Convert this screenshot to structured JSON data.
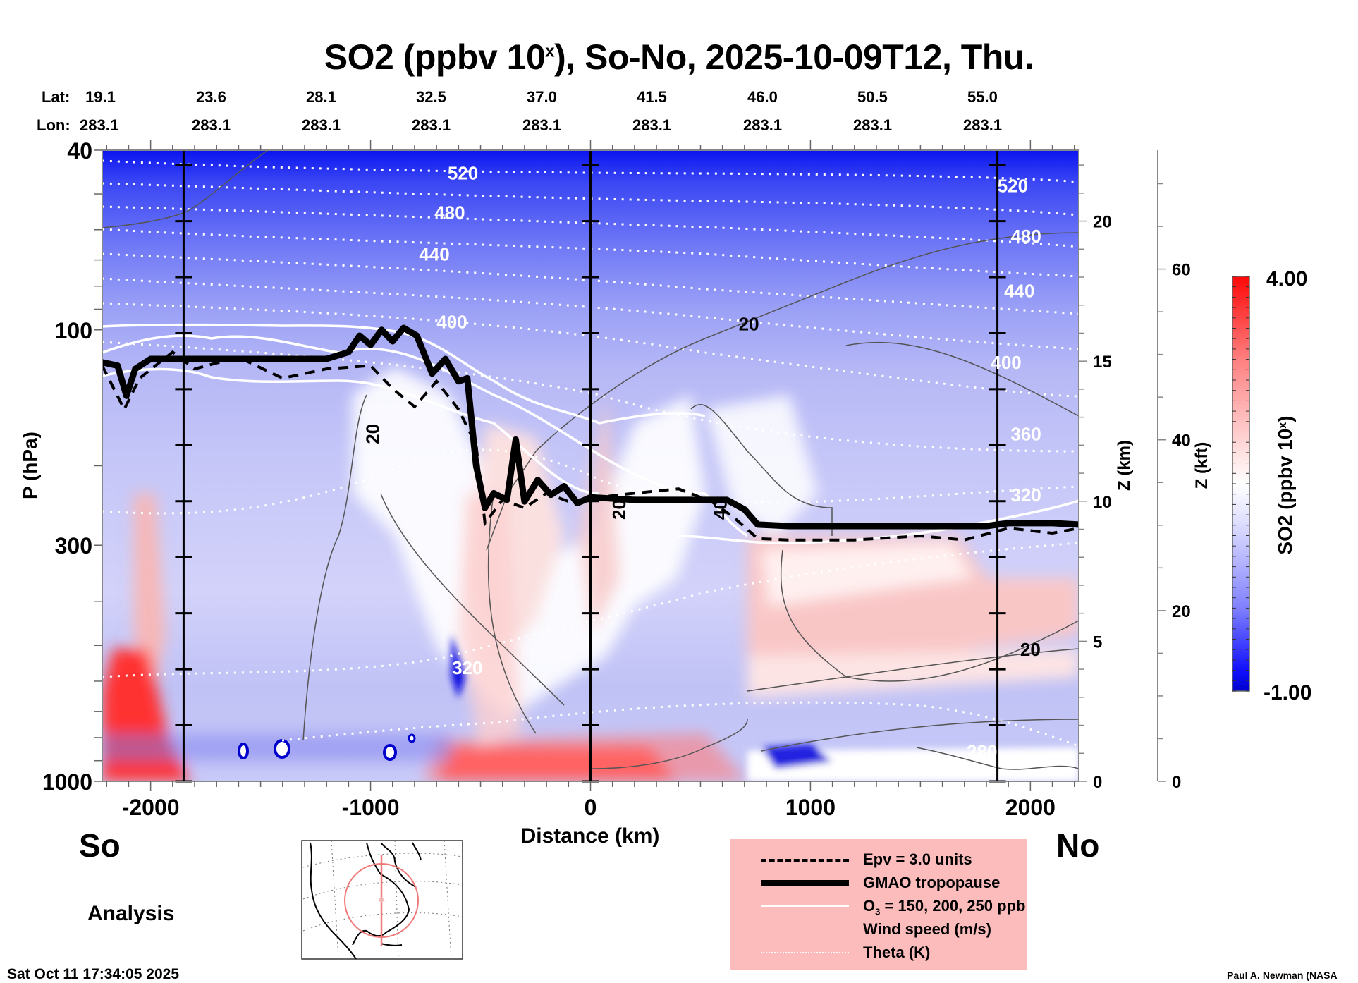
{
  "chart_data": {
    "type": "heatmap",
    "title": "SO2 (ppbv 10",
    "title_sup": "x",
    "title_suffix": "), So-No, 2025-10-09T12, Thu.",
    "xlabel": "Distance (km)",
    "ylabel": "P (hPa)",
    "xlim": [
      -2220,
      2220
    ],
    "ylim_hPa": [
      1000,
      40
    ],
    "x_ticks": [
      -2000,
      -1000,
      0,
      1000,
      2000
    ],
    "x_tick_labels": [
      "-2000",
      "-1000",
      "0",
      "1000",
      "2000"
    ],
    "y_ticks": [
      40,
      100,
      300,
      1000
    ],
    "y_tick_labels": [
      "40",
      "100",
      "300",
      "1000"
    ],
    "y_scale": "log",
    "z_km_axis": {
      "label": "Z (km)",
      "ticks": [
        0,
        5,
        10,
        15,
        20
      ],
      "tick_labels": [
        "0",
        "5",
        "10",
        "15",
        "20"
      ]
    },
    "z_kft_axis": {
      "label": "Z (kft)",
      "ticks": [
        0,
        20,
        40,
        60
      ],
      "tick_labels": [
        "0",
        "20",
        "40",
        "60"
      ]
    },
    "lat_header": {
      "label": "Lat:",
      "values": [
        "19.1",
        "23.6",
        "28.1",
        "32.5",
        "37.0",
        "41.5",
        "46.0",
        "50.5",
        "55.0"
      ]
    },
    "lon_header": {
      "label": "Lon:",
      "values": [
        "283.1",
        "283.1",
        "283.1",
        "283.1",
        "283.1",
        "283.1",
        "283.1",
        "283.1",
        "283.1"
      ]
    },
    "vertical_markers_km": [
      -1850,
      0,
      1850
    ],
    "colorbar": {
      "label": "SO2 (ppbv 10",
      "label_sup": "x",
      "label_suffix": ")",
      "min": -1.0,
      "max": 4.0,
      "min_label": "-1.00",
      "max_label": "4.00",
      "colors": [
        "#0000cc",
        "#ffffff",
        "#ff0000"
      ]
    },
    "theta_labels": [
      {
        "value": "520",
        "x_km": -580,
        "p": 45
      },
      {
        "value": "480",
        "x_km": -640,
        "p": 55
      },
      {
        "value": "440",
        "x_km": -710,
        "p": 68
      },
      {
        "value": "400",
        "x_km": -630,
        "p": 96
      },
      {
        "value": "520",
        "x_km": 1920,
        "p": 48
      },
      {
        "value": "480",
        "x_km": 1980,
        "p": 62
      },
      {
        "value": "440",
        "x_km": 1950,
        "p": 82
      },
      {
        "value": "400",
        "x_km": 1890,
        "p": 118
      },
      {
        "value": "360",
        "x_km": 1980,
        "p": 170
      },
      {
        "value": "320",
        "x_km": 1980,
        "p": 232
      },
      {
        "value": "320",
        "x_km": -560,
        "p": 560
      },
      {
        "value": "280",
        "x_km": 1780,
        "p": 860
      }
    ],
    "wind_labels": [
      {
        "value": "20",
        "x_km": 720,
        "p": 97
      },
      {
        "value": "20",
        "x_km": -990,
        "p": 170
      },
      {
        "value": "20",
        "x_km": 130,
        "p": 250
      },
      {
        "value": "40",
        "x_km": 590,
        "p": 250
      },
      {
        "value": "20",
        "x_km": 2000,
        "p": 510
      }
    ],
    "gmao_tropopause": [
      [
        -2220,
        118
      ],
      [
        -2150,
        120
      ],
      [
        -2110,
        140
      ],
      [
        -2070,
        122
      ],
      [
        -2000,
        116
      ],
      [
        -1800,
        116
      ],
      [
        -1500,
        116
      ],
      [
        -1200,
        116
      ],
      [
        -1100,
        112
      ],
      [
        -1050,
        103
      ],
      [
        -1000,
        108
      ],
      [
        -950,
        100
      ],
      [
        -900,
        106
      ],
      [
        -850,
        99
      ],
      [
        -790,
        103
      ],
      [
        -720,
        125
      ],
      [
        -660,
        116
      ],
      [
        -600,
        130
      ],
      [
        -560,
        128
      ],
      [
        -520,
        200
      ],
      [
        -480,
        248
      ],
      [
        -440,
        230
      ],
      [
        -380,
        238
      ],
      [
        -340,
        175
      ],
      [
        -300,
        240
      ],
      [
        -240,
        215
      ],
      [
        -180,
        232
      ],
      [
        -120,
        222
      ],
      [
        -60,
        242
      ],
      [
        0,
        235
      ],
      [
        200,
        238
      ],
      [
        450,
        238
      ],
      [
        620,
        238
      ],
      [
        700,
        250
      ],
      [
        760,
        270
      ],
      [
        900,
        272
      ],
      [
        1500,
        272
      ],
      [
        1800,
        272
      ],
      [
        1900,
        268
      ],
      [
        2100,
        268
      ],
      [
        2220,
        270
      ]
    ],
    "epv_3pvu": [
      [
        -2220,
        120
      ],
      [
        -2120,
        150
      ],
      [
        -2050,
        128
      ],
      [
        -1900,
        112
      ],
      [
        -1800,
        122
      ],
      [
        -1600,
        115
      ],
      [
        -1400,
        128
      ],
      [
        -1200,
        122
      ],
      [
        -1000,
        120
      ],
      [
        -900,
        135
      ],
      [
        -800,
        148
      ],
      [
        -700,
        130
      ],
      [
        -600,
        150
      ],
      [
        -520,
        180
      ],
      [
        -480,
        268
      ],
      [
        -400,
        238
      ],
      [
        -300,
        248
      ],
      [
        -200,
        230
      ],
      [
        -100,
        240
      ],
      [
        0,
        236
      ],
      [
        200,
        230
      ],
      [
        400,
        225
      ],
      [
        550,
        240
      ],
      [
        650,
        260
      ],
      [
        760,
        290
      ],
      [
        900,
        292
      ],
      [
        1200,
        292
      ],
      [
        1500,
        286
      ],
      [
        1700,
        292
      ],
      [
        1900,
        275
      ],
      [
        2100,
        282
      ],
      [
        2220,
        275
      ]
    ],
    "legend": {
      "position": "bottom-center",
      "background": "#fcbcbc",
      "entries": [
        {
          "label": "Epv = 3.0 units",
          "style": "dashed",
          "color": "#000000"
        },
        {
          "label": "GMAO tropopause",
          "style": "thick",
          "color": "#000000"
        },
        {
          "label_prefix": "O",
          "label_sub": "3",
          "label_suffix": " = 150, 200, 250 ppb",
          "style": "solid",
          "color": "#ffffff"
        },
        {
          "label": "Wind speed (m/s)",
          "style": "thin",
          "color": "#555555"
        },
        {
          "label": "Theta (K)",
          "style": "dotted",
          "color": "#ffffff"
        }
      ]
    }
  },
  "labels": {
    "south": "So",
    "north": "No",
    "analysis": "Analysis",
    "timestamp": "Sat Oct 11 17:34:05 2025",
    "credit": "Paul A. Newman (NASA"
  }
}
